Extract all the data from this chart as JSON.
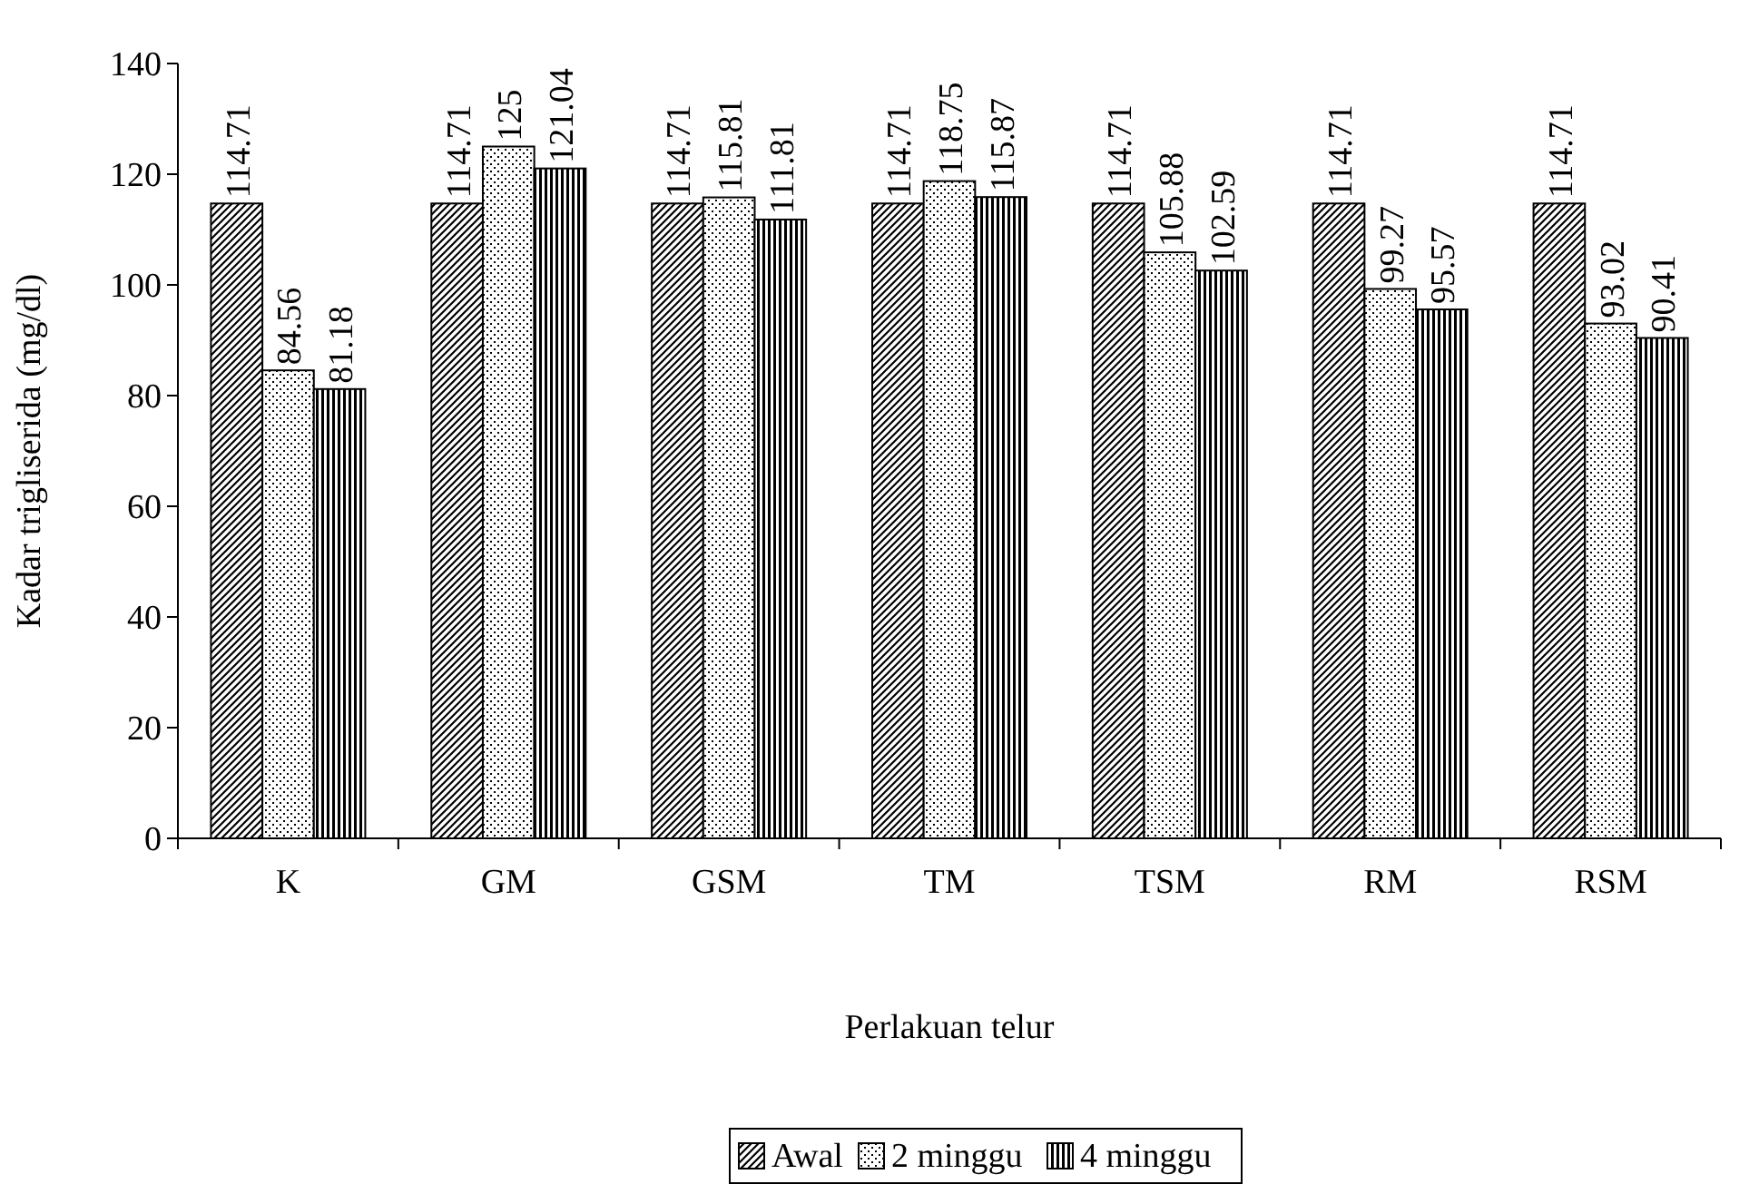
{
  "chart_data": {
    "type": "bar",
    "ylabel": "Kadar trigliserida (mg/dl)",
    "xlabel": "Perlakuan telur",
    "categories": [
      "K",
      "GM",
      "GSM",
      "TM",
      "TSM",
      "RM",
      "RSM"
    ],
    "series": [
      {
        "name": "Awal",
        "color": "#000000",
        "values": [
          114.71,
          114.71,
          114.71,
          114.71,
          114.71,
          114.71,
          114.71
        ]
      },
      {
        "name": "2 minggu",
        "color": "#000000",
        "values": [
          84.56,
          125,
          115.81,
          118.75,
          105.88,
          99.27,
          93.02
        ]
      },
      {
        "name": "4 minggu",
        "color": "#000000",
        "values": [
          81.18,
          121.04,
          111.81,
          115.87,
          102.59,
          95.57,
          90.41
        ]
      }
    ],
    "ylim": [
      0,
      140
    ],
    "yticks": [
      0,
      20,
      40,
      60,
      80,
      100,
      120,
      140
    ],
    "grid": false,
    "legend": "bottom",
    "data_labels": true
  }
}
